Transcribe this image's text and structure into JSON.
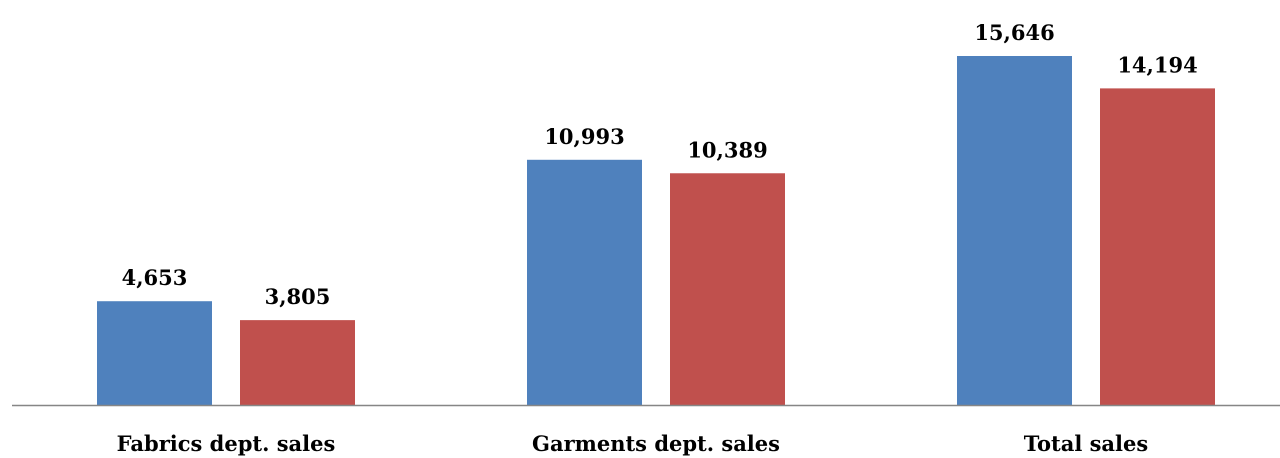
{
  "chart_data": {
    "type": "bar",
    "title": "",
    "xlabel": "",
    "ylabel": "",
    "categories": [
      "Fabrics dept. sales",
      "Garments dept. sales",
      "Total sales"
    ],
    "series": [
      {
        "values": [
          4653,
          10993,
          15646
        ],
        "labels": [
          "4,653",
          "10,993",
          "15,646"
        ],
        "color": "#4f81bd"
      },
      {
        "values": [
          3805,
          10389,
          14194
        ],
        "labels": [
          "3,805",
          "10,389",
          "14,194"
        ],
        "color": "#c0504d"
      }
    ],
    "ylim": [
      0,
      15646
    ],
    "grid": false,
    "legend": "none",
    "axis_color": "#868686"
  }
}
